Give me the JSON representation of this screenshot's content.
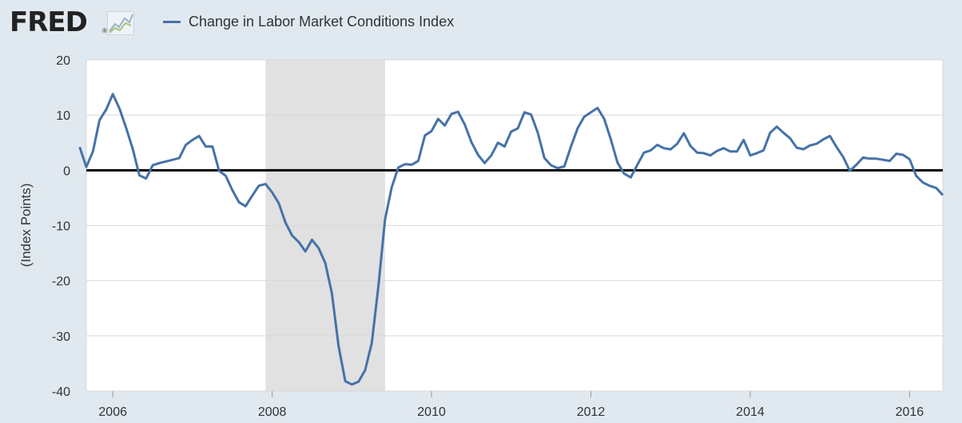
{
  "header": {
    "logo_text": "FRED",
    "logo_reg": "®",
    "logo_icon": "trend-graph-icon",
    "legend_label": "Change in Labor Market Conditions Index",
    "legend_color": "#4572a7"
  },
  "chart_data": {
    "type": "line",
    "title": "",
    "xlabel": "",
    "ylabel": "(Index Points)",
    "ylim": [
      -40,
      20
    ],
    "xlim": [
      2005.667,
      2016.417
    ],
    "yticks": [
      20,
      10,
      0,
      -10,
      -20,
      -30,
      -40
    ],
    "ytick_labels": [
      "20",
      "10",
      "0",
      "-10",
      "-20",
      "-30",
      "-40"
    ],
    "xticks": [
      2006,
      2008,
      2010,
      2012,
      2014,
      2016
    ],
    "xtick_labels": [
      "2006",
      "2008",
      "2010",
      "2012",
      "2014",
      "2016"
    ],
    "grid": true,
    "zero_line": true,
    "recession_band": {
      "start": 2007.917,
      "end": 2009.417,
      "color": "#e1e1e1"
    },
    "line_color": "#4572a7",
    "series": [
      {
        "name": "Change in Labor Market Conditions Index",
        "start": "2005-08",
        "frequency": "monthly",
        "values": [
          4.2,
          0.6,
          3.4,
          9.1,
          11.0,
          13.8,
          11.2,
          7.7,
          3.9,
          -0.9,
          -1.5,
          0.9,
          1.3,
          1.6,
          1.9,
          2.2,
          4.6,
          5.5,
          6.2,
          4.3,
          4.3,
          -0.1,
          -1.0,
          -3.6,
          -5.8,
          -6.5,
          -4.6,
          -2.8,
          -2.5,
          -4.0,
          -6.0,
          -9.5,
          -11.8,
          -13.0,
          -14.7,
          -12.6,
          -14.1,
          -16.8,
          -22.3,
          -31.8,
          -38.2,
          -38.8,
          -38.3,
          -36.2,
          -31.3,
          -21.0,
          -8.9,
          -3.1,
          0.5,
          1.1,
          1.0,
          1.7,
          6.3,
          7.1,
          9.3,
          8.1,
          10.2,
          10.6,
          8.3,
          5.1,
          2.8,
          1.3,
          2.7,
          5.0,
          4.3,
          7.0,
          7.6,
          10.5,
          10.1,
          6.8,
          2.2,
          0.9,
          0.4,
          0.7,
          4.3,
          7.6,
          9.7,
          10.5,
          11.3,
          9.3,
          5.6,
          1.4,
          -0.6,
          -1.3,
          1.0,
          3.2,
          3.6,
          4.6,
          4.0,
          3.8,
          4.8,
          6.7,
          4.4,
          3.2,
          3.1,
          2.7,
          3.5,
          4.0,
          3.4,
          3.4,
          5.5,
          2.7,
          3.1,
          3.6,
          6.8,
          7.9,
          6.8,
          5.8,
          4.1,
          3.8,
          4.5,
          4.8,
          5.6,
          6.2,
          4.2,
          2.4,
          -0.1,
          1.0,
          2.3,
          2.1,
          2.1,
          1.9,
          1.7,
          3.0,
          2.8,
          2.0,
          -1.0,
          -2.2,
          -2.8,
          -3.2,
          -4.5
        ]
      }
    ]
  }
}
